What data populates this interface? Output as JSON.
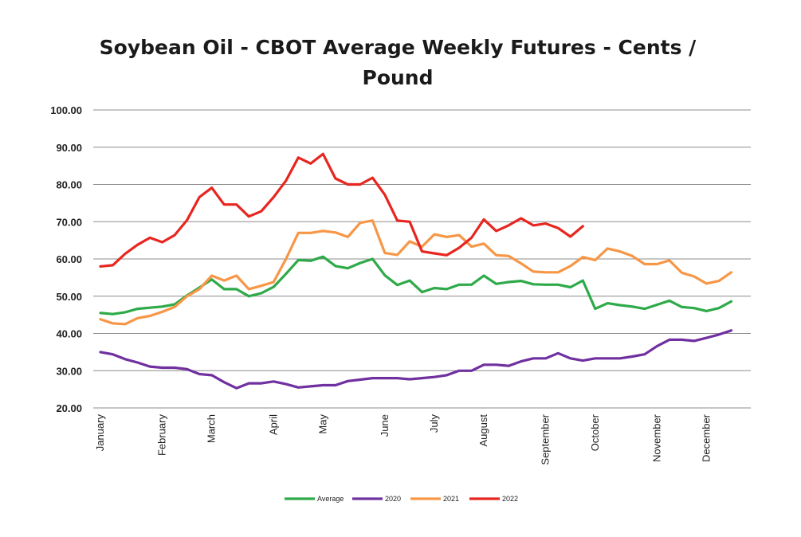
{
  "chart_data": {
    "type": "line",
    "title_lines": [
      "Soybean Oil - CBOT Average Weekly Futures - Cents /",
      "Pound"
    ],
    "xlabel": "",
    "ylabel": "",
    "ylim": [
      20,
      100
    ],
    "yticks": [
      "20.00",
      "30.00",
      "40.00",
      "50.00",
      "60.00",
      "70.00",
      "80.00",
      "90.00",
      "100.00"
    ],
    "ytick_values": [
      20,
      30,
      40,
      50,
      60,
      70,
      80,
      90,
      100
    ],
    "month_labels": [
      {
        "label": "January",
        "week": 1
      },
      {
        "label": "February",
        "week": 6
      },
      {
        "label": "March",
        "week": 10
      },
      {
        "label": "April",
        "week": 15
      },
      {
        "label": "May",
        "week": 19
      },
      {
        "label": "June",
        "week": 24
      },
      {
        "label": "July",
        "week": 28
      },
      {
        "label": "August",
        "week": 32
      },
      {
        "label": "September",
        "week": 37
      },
      {
        "label": "October",
        "week": 41
      },
      {
        "label": "November",
        "week": 46
      },
      {
        "label": "December",
        "week": 50
      }
    ],
    "week_count": 53,
    "grid": true,
    "legend_position": "bottom",
    "series": [
      {
        "name": "Average",
        "color": "#2eaa48",
        "values": [
          45.5,
          45.2,
          45.7,
          46.6,
          46.9,
          47.2,
          47.8,
          50.2,
          52.3,
          54.5,
          51.9,
          51.9,
          50.0,
          50.8,
          52.5,
          56.0,
          59.7,
          59.5,
          60.6,
          58.1,
          57.5,
          58.9,
          60.0,
          55.6,
          53.0,
          54.2,
          51.1,
          52.2,
          51.9,
          53.1,
          53.1,
          55.5,
          53.3,
          53.8,
          54.1,
          53.2,
          53.1,
          53.1,
          52.4,
          54.2,
          46.6,
          48.1,
          47.6,
          47.2,
          46.6,
          47.7,
          48.8,
          47.1,
          46.8,
          46.0,
          46.8,
          48.6
        ]
      },
      {
        "name": "2020",
        "color": "#7030a0",
        "values": [
          35.0,
          34.4,
          33.1,
          32.2,
          31.1,
          30.8,
          30.8,
          30.4,
          29.1,
          28.8,
          26.9,
          25.3,
          26.6,
          26.6,
          27.1,
          26.4,
          25.5,
          25.8,
          26.1,
          26.1,
          27.2,
          27.6,
          28.0,
          28.0,
          28.0,
          27.7,
          28.0,
          28.3,
          28.8,
          30.0,
          30.0,
          31.6,
          31.6,
          31.3,
          32.5,
          33.3,
          33.3,
          34.7,
          33.3,
          32.7,
          33.3,
          33.3,
          33.3,
          33.8,
          34.4,
          36.6,
          38.3,
          38.3,
          38.0,
          38.8,
          39.7,
          40.8
        ]
      },
      {
        "name": "2021",
        "color": "#f79646",
        "values": [
          43.8,
          42.7,
          42.5,
          44.1,
          44.7,
          45.8,
          47.1,
          50.0,
          51.9,
          55.5,
          54.2,
          55.5,
          51.9,
          52.8,
          53.8,
          60.0,
          67.0,
          67.0,
          67.5,
          67.1,
          65.9,
          69.7,
          70.3,
          61.6,
          61.1,
          64.7,
          63.3,
          66.6,
          65.9,
          66.4,
          63.3,
          64.1,
          61.0,
          60.8,
          58.8,
          56.6,
          56.4,
          56.4,
          58.1,
          60.5,
          59.7,
          62.8,
          62.0,
          60.8,
          58.6,
          58.6,
          59.6,
          56.3,
          55.3,
          53.4,
          54.1,
          56.4
        ]
      },
      {
        "name": "2022",
        "color": "#e8251f",
        "values": [
          58.0,
          58.3,
          61.4,
          63.8,
          65.7,
          64.5,
          66.4,
          70.4,
          76.6,
          79.1,
          74.6,
          74.6,
          71.4,
          72.8,
          76.6,
          81.0,
          87.2,
          85.6,
          88.2,
          81.6,
          80.0,
          80.0,
          81.8,
          77.2,
          70.3,
          70.0,
          62.0,
          61.5,
          61.0,
          63.0,
          65.7,
          70.6,
          67.5,
          69.0,
          70.9,
          69.0,
          69.5,
          68.3,
          66.0,
          68.8
        ]
      }
    ]
  }
}
